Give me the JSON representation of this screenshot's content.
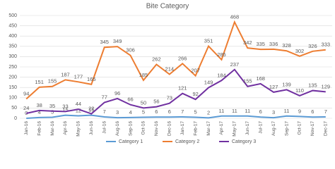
{
  "chart_data": {
    "type": "line",
    "title": "Bite Category",
    "categories": [
      "Jan-16",
      "Feb-16",
      "Mar-16",
      "Apr-16",
      "May-16",
      "Jun-16",
      "Jul-16",
      "Aug-16",
      "Sep-16",
      "Oct-16",
      "Nov-16",
      "Dec-16",
      "Jan-17",
      "Feb-17",
      "Mar-17",
      "Apr-17",
      "May-17",
      "Jun-17",
      "Jul-17",
      "Aug-17",
      "Sep-17",
      "Oct-17",
      "Nov-17",
      "Dec-17"
    ],
    "series": [
      {
        "name": "Category 1",
        "color": "#5b9bd5",
        "values": [
          0,
          4,
          5,
          15,
          12,
          15,
          7,
          3,
          4,
          5,
          6,
          6,
          7,
          5,
          2,
          11,
          11,
          11,
          6,
          3,
          11,
          9,
          6,
          7
        ]
      },
      {
        "name": "Category 2",
        "color": "#ed7d31",
        "values": [
          94,
          151,
          155,
          187,
          177,
          165,
          345,
          349,
          306,
          185,
          262,
          214,
          266,
          207,
          351,
          285,
          468,
          342,
          335,
          336,
          328,
          302,
          326,
          333
        ]
      },
      {
        "name": "Category 3",
        "color": "#7030a0",
        "values": [
          24,
          38,
          35,
          33,
          44,
          22,
          77,
          96,
          66,
          50,
          56,
          73,
          121,
          92,
          149,
          184,
          237,
          155,
          168,
          127,
          139,
          110,
          135,
          129
        ]
      }
    ],
    "ylim": [
      0,
      500
    ],
    "yticks": [
      0,
      50,
      100,
      150,
      200,
      250,
      300,
      350,
      400,
      450,
      500
    ],
    "grid": true,
    "legend": "bottom"
  }
}
